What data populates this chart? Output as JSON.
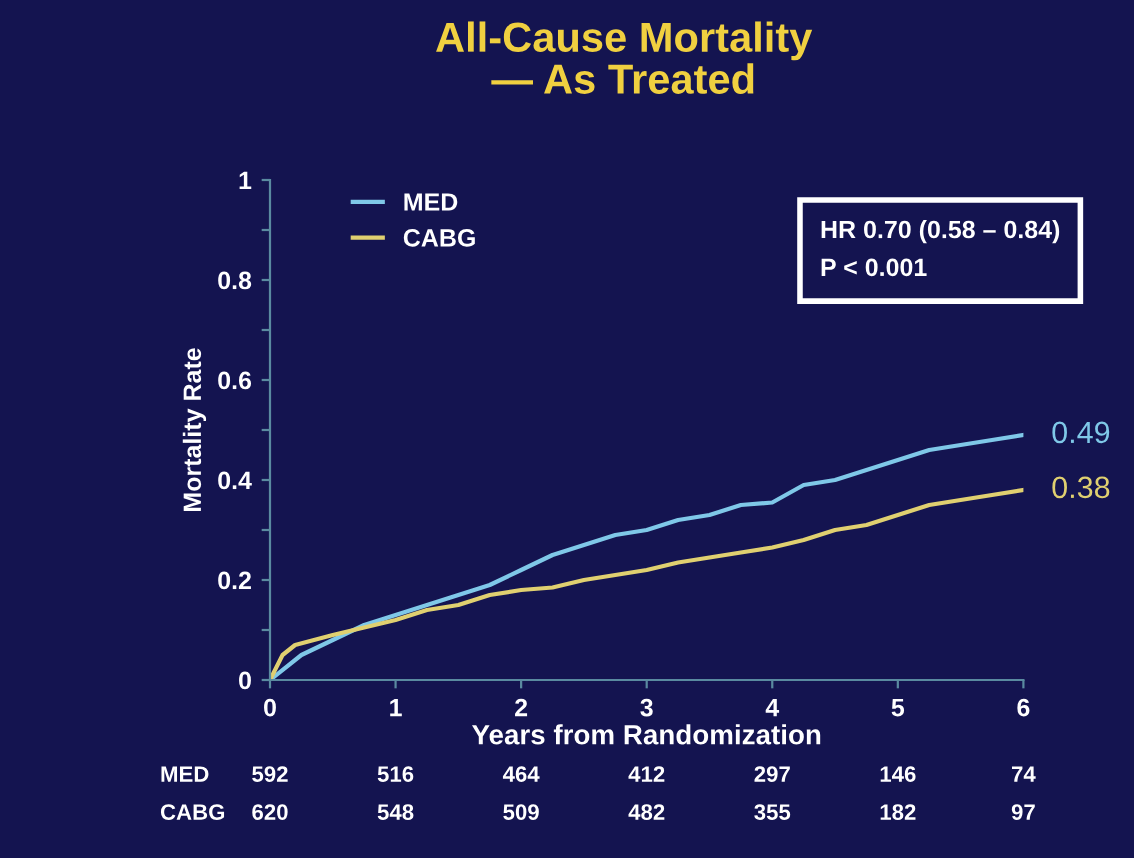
{
  "chart_data": {
    "type": "line",
    "title": "All-Cause Mortality\n— As Treated",
    "xlabel": "Years from Randomization",
    "ylabel": "Mortality Rate",
    "xlim": [
      0,
      6
    ],
    "xticks": [
      0,
      1,
      2,
      3,
      4,
      5,
      6
    ],
    "ylim": [
      0,
      1
    ],
    "yticks": [
      0,
      {
        "value": 0.1,
        "label": null
      },
      0.2,
      {
        "value": 0.3,
        "label": null
      },
      0.4,
      {
        "value": 0.5,
        "label": null
      },
      0.6,
      {
        "value": 0.7,
        "label": null
      },
      0.8,
      {
        "value": 0.9,
        "label": null
      },
      1
    ],
    "grid": false,
    "legend": "top left",
    "marker": "none",
    "line_style": "solid",
    "series": [
      {
        "name": "MED",
        "color": "#7fc8e8",
        "x": [
          0,
          0.25,
          0.5,
          0.75,
          1,
          1.25,
          1.5,
          1.75,
          2,
          2.25,
          2.5,
          2.75,
          3,
          3.25,
          3.5,
          3.75,
          4,
          4.25,
          4.5,
          4.75,
          5,
          5.25,
          5.5,
          5.75,
          6
        ],
        "values": [
          0,
          0.05,
          0.08,
          0.11,
          0.13,
          0.15,
          0.17,
          0.19,
          0.22,
          0.25,
          0.27,
          0.29,
          0.3,
          0.32,
          0.33,
          0.35,
          0.355,
          0.39,
          0.4,
          0.42,
          0.44,
          0.46,
          0.47,
          0.48,
          0.49
        ],
        "value_labels": [
          null,
          null,
          null,
          null,
          null,
          null,
          null,
          null,
          null,
          null,
          null,
          null,
          null,
          null,
          null,
          null,
          null,
          null,
          null,
          null,
          null,
          null,
          null,
          null,
          "0.49"
        ]
      },
      {
        "name": "CABG",
        "color": "#e0d070",
        "x": [
          0,
          0.1,
          0.2,
          0.5,
          0.75,
          1,
          1.25,
          1.5,
          1.75,
          2,
          2.25,
          2.5,
          2.75,
          3,
          3.25,
          3.5,
          3.75,
          4,
          4.25,
          4.5,
          4.75,
          5,
          5.25,
          5.5,
          5.75,
          6
        ],
        "values": [
          0,
          0.05,
          0.07,
          0.09,
          0.105,
          0.12,
          0.14,
          0.15,
          0.17,
          0.18,
          0.185,
          0.2,
          0.21,
          0.22,
          0.235,
          0.245,
          0.255,
          0.265,
          0.28,
          0.3,
          0.31,
          0.33,
          0.35,
          0.36,
          0.37,
          0.38
        ],
        "value_labels": [
          null,
          null,
          null,
          null,
          null,
          null,
          null,
          null,
          null,
          null,
          null,
          null,
          null,
          null,
          null,
          null,
          null,
          null,
          null,
          null,
          null,
          null,
          null,
          null,
          null,
          "0.38"
        ]
      }
    ],
    "annotations": [
      "HR 0.70 (0.58 – 0.84)\nP < 0.001",
      "MED",
      "592",
      "516",
      "464",
      "412",
      "297",
      "146",
      "74",
      "CABG",
      "620",
      "548",
      "509",
      "482",
      "355",
      "182",
      "97"
    ]
  }
}
